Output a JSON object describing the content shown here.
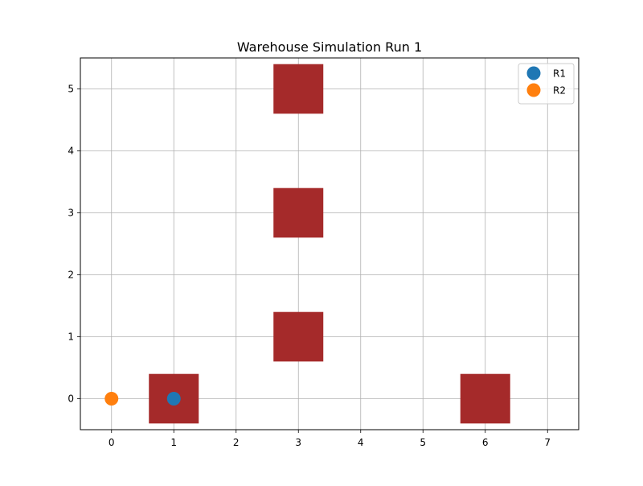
{
  "chart_data": {
    "type": "scatter",
    "title": "Warehouse Simulation Run 1",
    "xlabel": "",
    "ylabel": "",
    "xlim": [
      -0.5,
      7.5
    ],
    "ylim": [
      -0.5,
      5.5
    ],
    "x_ticks": [
      0,
      1,
      2,
      3,
      4,
      5,
      6,
      7
    ],
    "y_ticks": [
      0,
      1,
      2,
      3,
      4,
      5
    ],
    "grid": true,
    "legend_position": "top-right",
    "obstacle_color": "#a52a2a",
    "obstacles": [
      {
        "x": 1,
        "y": 0,
        "size": 0.8
      },
      {
        "x": 3,
        "y": 1,
        "size": 0.8
      },
      {
        "x": 3,
        "y": 3,
        "size": 0.8
      },
      {
        "x": 3,
        "y": 5,
        "size": 0.8
      },
      {
        "x": 6,
        "y": 0,
        "size": 0.8
      }
    ],
    "series": [
      {
        "name": "R1",
        "color": "#1f77b4",
        "points": [
          {
            "x": 1,
            "y": 0
          }
        ]
      },
      {
        "name": "R2",
        "color": "#ff7f0e",
        "points": [
          {
            "x": 0,
            "y": 0
          }
        ]
      }
    ]
  }
}
